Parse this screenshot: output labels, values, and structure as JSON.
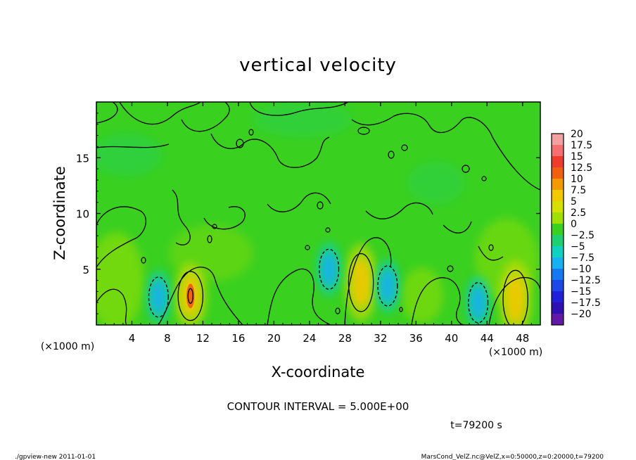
{
  "chart_data": {
    "type": "heatmap",
    "title": "vertical velocity",
    "xlabel": "X-coordinate",
    "ylabel": "Z-coordinate",
    "x_unit_left": "(×1000 m)",
    "x_unit_right": "(×1000 m)",
    "xlim": [
      0,
      50
    ],
    "ylim": [
      0,
      20
    ],
    "x_ticks": [
      4,
      8,
      12,
      16,
      20,
      24,
      28,
      32,
      36,
      40,
      44,
      48
    ],
    "x_tick_labels": [
      "4",
      "8",
      "12",
      "16",
      "20",
      "24",
      "28",
      "32",
      "36",
      "40",
      "44",
      "48"
    ],
    "y_ticks": [
      5,
      10,
      15
    ],
    "y_tick_labels": [
      "5",
      "10",
      "15"
    ],
    "colorbar": {
      "levels": [
        20,
        17.5,
        15,
        12.5,
        10,
        7.5,
        5,
        2.5,
        0,
        -2.5,
        -5,
        -7.5,
        -10,
        -12.5,
        -15,
        -17.5,
        -20
      ],
      "labels": [
        "20",
        "17.5",
        "15",
        "12.5",
        "10",
        "7.5",
        "5",
        "2.5",
        "0",
        "−2.5",
        "−5",
        "−7.5",
        "−10",
        "−12.5",
        "−15",
        "−17.5",
        "−20"
      ],
      "colors": [
        "#f4a0a0",
        "#f47070",
        "#ee3c2c",
        "#f06010",
        "#f39a00",
        "#f2c800",
        "#d6e000",
        "#9fe000",
        "#3ad020",
        "#20d070",
        "#10d0c0",
        "#18b0f0",
        "#1478f0",
        "#1c48e8",
        "#2020d8",
        "#3010b0",
        "#6418a8"
      ]
    },
    "features": [
      {
        "kind": "updraft",
        "x": 10.6,
        "z": 2.6,
        "peak": 10
      },
      {
        "kind": "updraft",
        "x": 29.8,
        "z": 3.8,
        "peak": 5
      },
      {
        "kind": "updraft",
        "x": 47.2,
        "z": 2.3,
        "peak": 5
      },
      {
        "kind": "downdraft",
        "x": 7.0,
        "z": 2.5,
        "peak": -5
      },
      {
        "kind": "downdraft",
        "x": 26.2,
        "z": 5.0,
        "peak": -5
      },
      {
        "kind": "downdraft",
        "x": 32.8,
        "z": 3.5,
        "peak": -5
      },
      {
        "kind": "downdraft",
        "x": 43.0,
        "z": 2.0,
        "peak": -5
      }
    ],
    "contour_interval_text": "CONTOUR INTERVAL = 5.000E+00",
    "time_text": "t=79200 s",
    "footer_left": "./gpview-new   2011-01-01",
    "footer_right": "MarsCond_VelZ.nc@VelZ,x=0:50000,z=0:20000,t=79200"
  }
}
